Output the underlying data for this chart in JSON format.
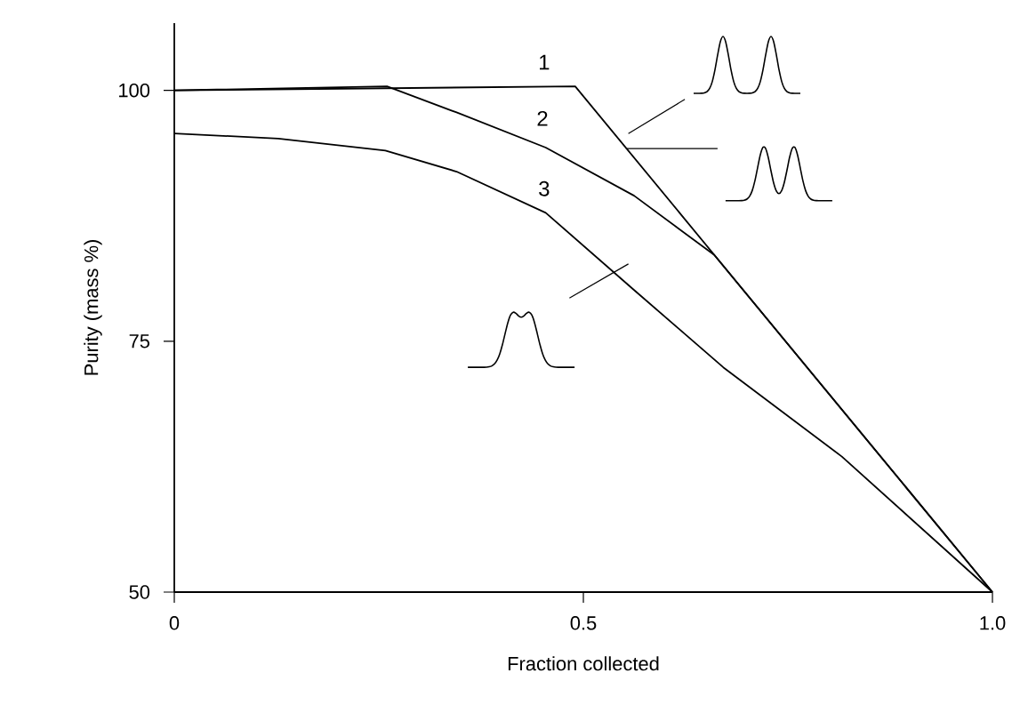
{
  "chart_data": {
    "type": "line",
    "xlabel": "Fraction collected",
    "ylabel": "Purity (mass %)",
    "xlim": [
      0,
      1.0
    ],
    "ylim": [
      50,
      106.7
    ],
    "xticks": [
      0,
      0.5,
      {
        "value": 1.0,
        "label": "1.0"
      }
    ],
    "yticks": [
      50,
      75,
      100
    ],
    "grid": false,
    "legend": false,
    "line_style": "solid",
    "marker": "none",
    "series": [
      {
        "name": "1",
        "color": "#000000",
        "x": [
          0,
          0.49,
          1.0
        ],
        "values": [
          100,
          100.4,
          50
        ]
      },
      {
        "name": "2",
        "color": "#000000",
        "x": [
          0,
          0.26,
          0.345,
          0.454,
          0.562,
          0.66,
          1.0
        ],
        "values": [
          100,
          100.4,
          97.8,
          94.3,
          89.5,
          83.6,
          50
        ]
      },
      {
        "name": "3",
        "color": "#000000",
        "x": [
          0,
          0.127,
          0.258,
          0.345,
          0.454,
          0.562,
          0.671,
          0.816,
          1.0
        ],
        "values": [
          95.7,
          95.2,
          94.0,
          91.9,
          87.8,
          80.1,
          72.4,
          63.5,
          50
        ]
      }
    ]
  }
}
